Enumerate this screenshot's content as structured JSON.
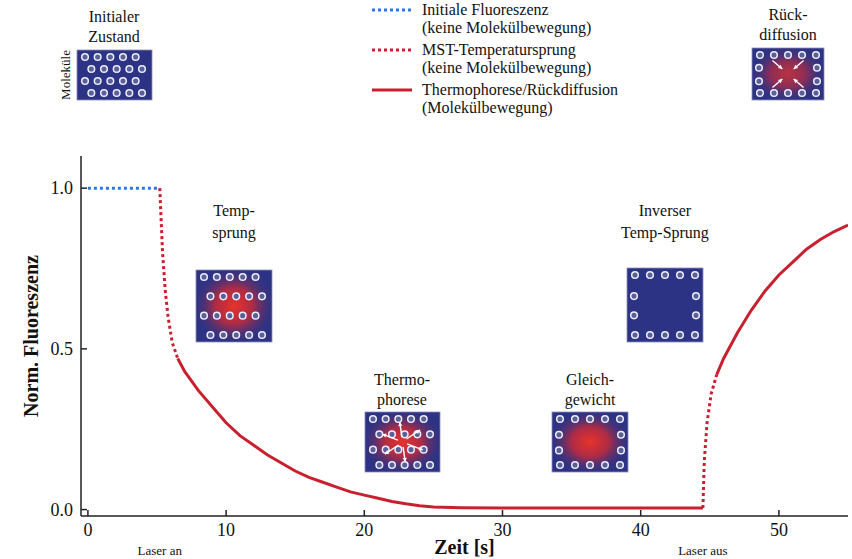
{
  "chart_data": {
    "type": "line",
    "xlabel": "Zeit [s]",
    "ylabel": "Norm. Fluoreszenz",
    "xlim": [
      -0.5,
      55
    ],
    "ylim": [
      -0.02,
      1.1
    ],
    "xticks": [
      0,
      10,
      20,
      30,
      40,
      50
    ],
    "yticks": [
      {
        "value": 0,
        "label": "0.0"
      },
      {
        "value": 0.5,
        "label": "0.5"
      },
      {
        "value": 1,
        "label": "1.0"
      }
    ],
    "grid": false,
    "legend": "top",
    "series": [
      {
        "name": "Initiale Fluoreszenz (keine Molekülbewegung)",
        "color": "#2b7bd6",
        "line_style": "dotted",
        "x": [
          0,
          5.2
        ],
        "values": [
          1.0,
          1.0
        ]
      },
      {
        "name": "MST-Temperatursprung (keine Molekülbewegung)",
        "color": "#c8202e",
        "line_style": "dotted",
        "x": [
          5.2,
          5.4,
          5.6,
          5.8,
          6.1,
          6.5,
          null,
          44.5,
          44.6,
          44.8,
          45.1,
          45.5
        ],
        "values": [
          1.0,
          0.8,
          0.68,
          0.6,
          0.52,
          0.47,
          null,
          0.005,
          0.15,
          0.27,
          0.36,
          0.42
        ]
      },
      {
        "name": "Thermophorese/Rückdiffusion (Molekülbewegung)",
        "color": "#c8202e",
        "line_style": "solid",
        "x": [
          6.5,
          7,
          8,
          9,
          10,
          11,
          12,
          13,
          14,
          15,
          16,
          17,
          18,
          19,
          20,
          21,
          22,
          23,
          24,
          25,
          27,
          30,
          35,
          40,
          44.5,
          null,
          45.5,
          46,
          47,
          48,
          49,
          50,
          51,
          52,
          53,
          54,
          55
        ],
        "values": [
          0.47,
          0.43,
          0.37,
          0.32,
          0.27,
          0.23,
          0.2,
          0.17,
          0.145,
          0.12,
          0.1,
          0.085,
          0.07,
          0.055,
          0.045,
          0.035,
          0.025,
          0.018,
          0.012,
          0.008,
          0.006,
          0.005,
          0.005,
          0.005,
          0.005,
          null,
          0.42,
          0.47,
          0.55,
          0.62,
          0.68,
          0.73,
          0.77,
          0.81,
          0.84,
          0.865,
          0.885
        ]
      }
    ],
    "annotations": [
      {
        "text": "Laser an",
        "x": 5.2
      },
      {
        "text": "Laser aus",
        "x": 44.5
      },
      {
        "lines": [
          "Initialer",
          "Zustand"
        ]
      },
      {
        "text": "Moleküle"
      },
      {
        "lines": [
          "Temp-",
          "sprung"
        ]
      },
      {
        "lines": [
          "Thermo-",
          "phorese"
        ]
      },
      {
        "lines": [
          "Gleich-",
          "gewicht"
        ]
      },
      {
        "lines": [
          "Inverser",
          "Temp-Sprung"
        ]
      },
      {
        "lines": [
          "Rück-",
          "diffusion"
        ]
      }
    ]
  }
}
